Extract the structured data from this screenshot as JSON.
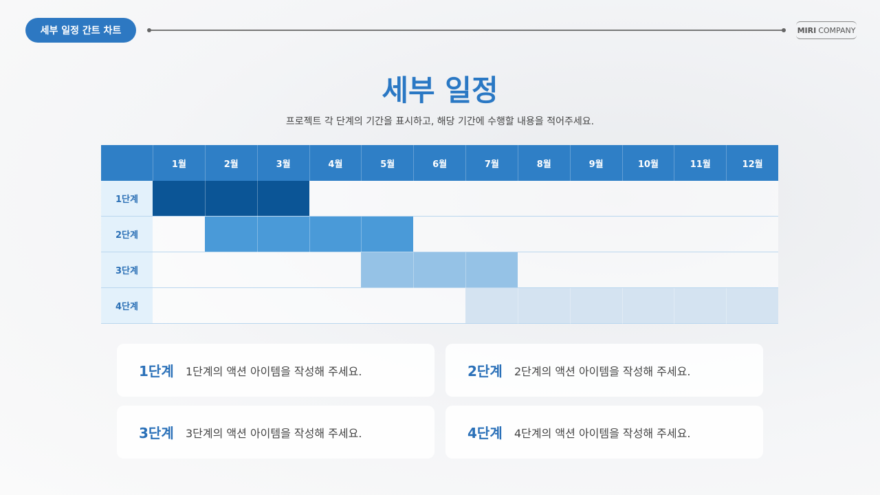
{
  "header": {
    "tag": "세부 일정 간트 차트",
    "brand_bold": "MIRI",
    "brand_rest": "COMPANY"
  },
  "title": "세부 일정",
  "subtitle": "프로젝트 각 단계의 기간을 표시하고, 해당 기간에 수행할 내용을 적어주세요.",
  "table": {
    "months": [
      "1월",
      "2월",
      "3월",
      "4월",
      "5월",
      "6월",
      "7월",
      "8월",
      "9월",
      "10월",
      "11월",
      "12월"
    ],
    "rows": [
      {
        "label": "1단계",
        "start": 1,
        "end": 3,
        "color": "#0b5596"
      },
      {
        "label": "2단계",
        "start": 2,
        "end": 5,
        "color": "#4a9ad8"
      },
      {
        "label": "3단계",
        "start": 5,
        "end": 7,
        "color": "#95c2e6"
      },
      {
        "label": "4단계",
        "start": 7,
        "end": 12,
        "color": "#d4e3f1"
      }
    ]
  },
  "cards": [
    {
      "label": "1단계",
      "text": "1단계의 액션 아이템을 작성해 주세요."
    },
    {
      "label": "2단계",
      "text": "2단계의 액션 아이템을 작성해 주세요."
    },
    {
      "label": "3단계",
      "text": "3단계의 액션 아이템을 작성해 주세요."
    },
    {
      "label": "4단계",
      "text": "4단계의 액션 아이템을 작성해 주세요."
    }
  ]
}
